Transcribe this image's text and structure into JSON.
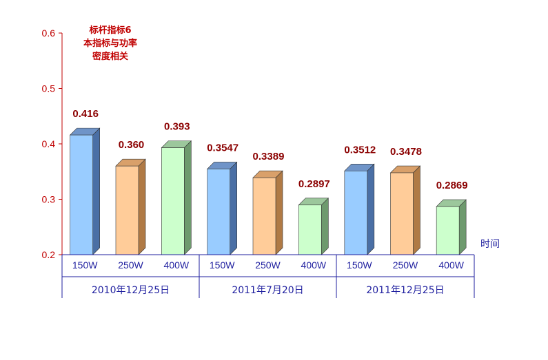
{
  "chart_data": {
    "type": "bar",
    "ylim": [
      0.2,
      0.6
    ],
    "y_ticks": [
      "0.2",
      "0.3",
      "0.4",
      "0.5",
      "0.6"
    ],
    "xlabel": "时间",
    "note_lines": [
      "标杆指标6",
      "本指标与功率",
      "密度相关"
    ],
    "groups": [
      {
        "label": "2010年12月25日",
        "bars": [
          {
            "category": "150W",
            "value": 0.416,
            "label": "0.416"
          },
          {
            "category": "250W",
            "value": 0.36,
            "label": "0.360"
          },
          {
            "category": "400W",
            "value": 0.393,
            "label": "0.393"
          }
        ]
      },
      {
        "label": "2011年7月20日",
        "bars": [
          {
            "category": "150W",
            "value": 0.3547,
            "label": "0.3547"
          },
          {
            "category": "250W",
            "value": 0.3389,
            "label": "0.3389"
          },
          {
            "category": "400W",
            "value": 0.2897,
            "label": "0.2897"
          }
        ]
      },
      {
        "label": "2011年12月25日",
        "bars": [
          {
            "category": "150W",
            "value": 0.3512,
            "label": "0.3512"
          },
          {
            "category": "250W",
            "value": 0.3478,
            "label": "0.3478"
          },
          {
            "category": "400W",
            "value": 0.2869,
            "label": "0.2869"
          }
        ]
      }
    ],
    "colors": {
      "150W": {
        "front": "#99ccff",
        "side": "#4a6fa5",
        "top": "#6f94c8"
      },
      "250W": {
        "front": "#ffcc99",
        "side": "#b07a45",
        "top": "#d9a06a"
      },
      "400W": {
        "front": "#ccffcc",
        "side": "#6e9a6e",
        "top": "#9cc79c"
      },
      "axis_y": "#c00000",
      "axis_x": "#1f1f9f"
    }
  }
}
